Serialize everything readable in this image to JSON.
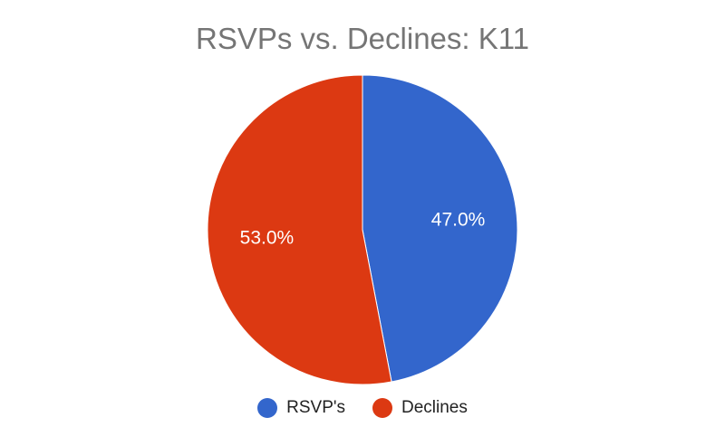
{
  "chart_data": {
    "type": "pie",
    "title": "RSVPs vs. Declines: K11",
    "categories": [
      "RSVP's",
      "Declines"
    ],
    "values": [
      47.0,
      53.0
    ],
    "value_labels": [
      "47.0%",
      "53.0%"
    ],
    "colors": [
      "#3366cc",
      "#dc3912"
    ],
    "start_angle_deg": 0,
    "direction": "clockwise",
    "legend_position": "bottom"
  }
}
